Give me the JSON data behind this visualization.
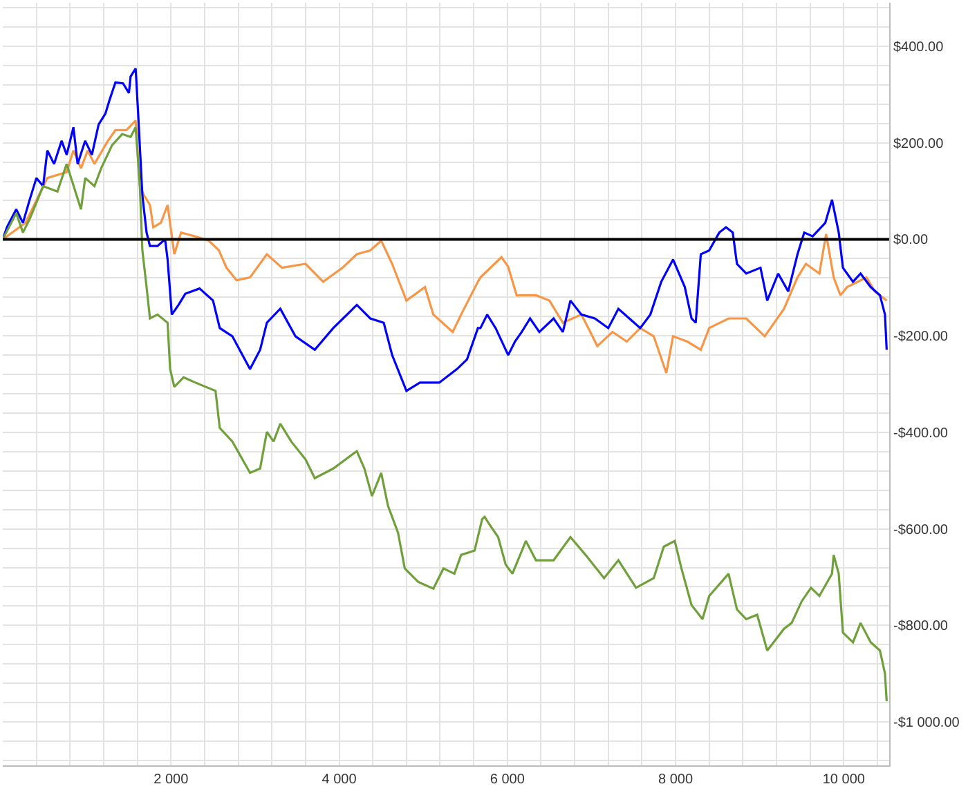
{
  "chart_data": {
    "type": "line",
    "xlim": [
      0,
      10540
    ],
    "ylim": [
      -1090,
      490
    ],
    "grid": true,
    "marker": "none",
    "line_style": "solid",
    "xticks": [
      {
        "value": 400,
        "label": null
      },
      {
        "value": 800,
        "label": null
      },
      {
        "value": 1200,
        "label": null
      },
      {
        "value": 1600,
        "label": null
      },
      {
        "value": 2000,
        "label": "2 000"
      },
      {
        "value": 2400,
        "label": null
      },
      {
        "value": 2800,
        "label": null
      },
      {
        "value": 3200,
        "label": null
      },
      {
        "value": 3600,
        "label": null
      },
      {
        "value": 4000,
        "label": "4 000"
      },
      {
        "value": 4400,
        "label": null
      },
      {
        "value": 4800,
        "label": null
      },
      {
        "value": 5200,
        "label": null
      },
      {
        "value": 5600,
        "label": null
      },
      {
        "value": 6000,
        "label": "6 000"
      },
      {
        "value": 6400,
        "label": null
      },
      {
        "value": 6800,
        "label": null
      },
      {
        "value": 7200,
        "label": null
      },
      {
        "value": 7600,
        "label": null
      },
      {
        "value": 8000,
        "label": "8 000"
      },
      {
        "value": 8400,
        "label": null
      },
      {
        "value": 8800,
        "label": null
      },
      {
        "value": 9200,
        "label": null
      },
      {
        "value": 9600,
        "label": null
      },
      {
        "value": 10000,
        "label": "10 000"
      },
      {
        "value": 10400,
        "label": null
      }
    ],
    "yticks": [
      {
        "value": -1080,
        "label": null
      },
      {
        "value": -1040,
        "label": null
      },
      {
        "value": -1000,
        "label": "-$1 000.00"
      },
      {
        "value": -960,
        "label": null
      },
      {
        "value": -920,
        "label": null
      },
      {
        "value": -880,
        "label": null
      },
      {
        "value": -840,
        "label": null
      },
      {
        "value": -800,
        "label": "-$800.00"
      },
      {
        "value": -760,
        "label": null
      },
      {
        "value": -720,
        "label": null
      },
      {
        "value": -680,
        "label": null
      },
      {
        "value": -640,
        "label": null
      },
      {
        "value": -600,
        "label": "-$600.00"
      },
      {
        "value": -560,
        "label": null
      },
      {
        "value": -520,
        "label": null
      },
      {
        "value": -480,
        "label": null
      },
      {
        "value": -440,
        "label": null
      },
      {
        "value": -400,
        "label": "-$400.00"
      },
      {
        "value": -360,
        "label": null
      },
      {
        "value": -320,
        "label": null
      },
      {
        "value": -280,
        "label": null
      },
      {
        "value": -240,
        "label": null
      },
      {
        "value": -200,
        "label": "-$200.00"
      },
      {
        "value": -160,
        "label": null
      },
      {
        "value": -120,
        "label": null
      },
      {
        "value": -80,
        "label": null
      },
      {
        "value": -40,
        "label": null
      },
      {
        "value": 0,
        "label": "$0.00"
      },
      {
        "value": 40,
        "label": null
      },
      {
        "value": 80,
        "label": null
      },
      {
        "value": 120,
        "label": null
      },
      {
        "value": 160,
        "label": null
      },
      {
        "value": 200,
        "label": "$200.00"
      },
      {
        "value": 240,
        "label": null
      },
      {
        "value": 280,
        "label": null
      },
      {
        "value": 320,
        "label": null
      },
      {
        "value": 360,
        "label": null
      },
      {
        "value": 400,
        "label": "$400.00"
      },
      {
        "value": 440,
        "label": null
      },
      {
        "value": 480,
        "label": null
      }
    ],
    "ref_lines": [
      {
        "axis": "y",
        "value": 0,
        "color": "#000000"
      }
    ],
    "series": [
      {
        "color": "#f79646",
        "x": [
          0,
          270,
          530,
          760,
          840,
          930,
          1010,
          1090,
          1250,
          1340,
          1470,
          1580,
          1630,
          1680,
          1750,
          1790,
          1880,
          1960,
          2040,
          2120,
          2290,
          2450,
          2570,
          2660,
          2780,
          2940,
          3140,
          3320,
          3600,
          3810,
          4040,
          4210,
          4370,
          4500,
          4630,
          4800,
          5020,
          5120,
          5350,
          5450,
          5650,
          5680,
          5930,
          6010,
          6110,
          6340,
          6500,
          6660,
          6880,
          7070,
          7250,
          7420,
          7580,
          7740,
          7890,
          7970,
          8140,
          8300,
          8400,
          8630,
          8840,
          9060,
          9290,
          9450,
          9550,
          9710,
          9790,
          9880,
          9960,
          10040,
          10270,
          10370,
          10510
        ],
        "values": [
          0,
          34,
          127,
          139,
          184,
          147,
          184,
          156,
          204,
          226,
          226,
          246,
          110,
          91,
          71,
          25,
          34,
          71,
          -31,
          14,
          6,
          -3,
          -23,
          -59,
          -85,
          -79,
          -31,
          -59,
          -51,
          -88,
          -59,
          -31,
          -23,
          -3,
          -51,
          -127,
          -99,
          -156,
          -192,
          -156,
          -88,
          -79,
          -37,
          -57,
          -116,
          -116,
          -127,
          -173,
          -156,
          -221,
          -192,
          -212,
          -184,
          -201,
          -277,
          -201,
          -212,
          -229,
          -184,
          -164,
          -164,
          -201,
          -144,
          -79,
          -51,
          -71,
          11,
          -79,
          -116,
          -99,
          -79,
          -108,
          -127
        ]
      },
      {
        "color": "#0000ff",
        "x": [
          0,
          50,
          160,
          240,
          320,
          400,
          480,
          530,
          610,
          700,
          760,
          840,
          890,
          980,
          1060,
          1140,
          1220,
          1270,
          1340,
          1430,
          1500,
          1520,
          1580,
          1610,
          1660,
          1710,
          1750,
          1840,
          1930,
          1960,
          2010,
          2090,
          2170,
          2340,
          2500,
          2580,
          2730,
          2940,
          3060,
          3140,
          3300,
          3480,
          3710,
          3930,
          4210,
          4370,
          4530,
          4630,
          4800,
          4960,
          5190,
          5400,
          5520,
          5650,
          5680,
          5760,
          5860,
          6010,
          6090,
          6170,
          6270,
          6380,
          6550,
          6660,
          6750,
          6880,
          7040,
          7200,
          7320,
          7450,
          7580,
          7700,
          7830,
          7970,
          8110,
          8190,
          8240,
          8300,
          8400,
          8520,
          8600,
          8680,
          8730,
          8840,
          9010,
          9090,
          9220,
          9340,
          9450,
          9530,
          9630,
          9780,
          9860,
          9940,
          9990,
          10110,
          10200,
          10320,
          10430,
          10490,
          10510
        ],
        "values": [
          0,
          25,
          62,
          34,
          82,
          127,
          110,
          184,
          156,
          204,
          175,
          232,
          156,
          204,
          175,
          238,
          260,
          289,
          325,
          323,
          303,
          337,
          354,
          260,
          91,
          14,
          -14,
          -14,
          0,
          -42,
          -156,
          -136,
          -113,
          -102,
          -127,
          -184,
          -201,
          -269,
          -229,
          -173,
          -144,
          -201,
          -229,
          -184,
          -136,
          -164,
          -173,
          -240,
          -314,
          -297,
          -297,
          -269,
          -249,
          -184,
          -184,
          -156,
          -184,
          -240,
          -212,
          -192,
          -164,
          -192,
          -164,
          -192,
          -127,
          -156,
          -164,
          -184,
          -144,
          -164,
          -184,
          -156,
          -88,
          -42,
          -99,
          -164,
          -173,
          -31,
          -23,
          14,
          25,
          14,
          -51,
          -71,
          -59,
          -127,
          -71,
          -108,
          -31,
          14,
          6,
          34,
          82,
          14,
          -59,
          -88,
          -71,
          -99,
          -116,
          -156,
          -229
        ]
      },
      {
        "color": "#70a03c",
        "x": [
          0,
          160,
          240,
          320,
          480,
          650,
          760,
          930,
          980,
          1090,
          1170,
          1300,
          1420,
          1520,
          1580,
          1630,
          1660,
          1710,
          1750,
          1840,
          1960,
          1990,
          2040,
          2150,
          2290,
          2530,
          2580,
          2730,
          2940,
          3060,
          3140,
          3220,
          3300,
          3430,
          3600,
          3710,
          3930,
          4210,
          4300,
          4390,
          4500,
          4580,
          4700,
          4780,
          4940,
          5120,
          5240,
          5370,
          5450,
          5610,
          5700,
          5730,
          5780,
          5890,
          5980,
          6060,
          6220,
          6340,
          6550,
          6750,
          6930,
          7150,
          7320,
          7530,
          7740,
          7860,
          7990,
          8070,
          8190,
          8320,
          8400,
          8630,
          8730,
          8840,
          8970,
          9090,
          9290,
          9380,
          9500,
          9610,
          9710,
          9860,
          9880,
          9940,
          9990,
          10110,
          10200,
          10320,
          10430,
          10490,
          10510
        ],
        "values": [
          0,
          54,
          14,
          42,
          110,
          99,
          156,
          62,
          127,
          110,
          147,
          195,
          218,
          212,
          232,
          110,
          -23,
          -99,
          -164,
          -156,
          -173,
          -269,
          -306,
          -286,
          -297,
          -314,
          -391,
          -419,
          -484,
          -475,
          -399,
          -419,
          -382,
          -419,
          -456,
          -495,
          -475,
          -439,
          -475,
          -532,
          -484,
          -552,
          -608,
          -682,
          -710,
          -724,
          -682,
          -693,
          -654,
          -645,
          -580,
          -575,
          -589,
          -617,
          -674,
          -693,
          -625,
          -665,
          -665,
          -617,
          -654,
          -702,
          -665,
          -722,
          -702,
          -637,
          -625,
          -682,
          -758,
          -787,
          -739,
          -693,
          -767,
          -787,
          -778,
          -852,
          -807,
          -795,
          -750,
          -722,
          -739,
          -693,
          -654,
          -693,
          -815,
          -835,
          -795,
          -835,
          -852,
          -900,
          -957
        ]
      }
    ]
  }
}
